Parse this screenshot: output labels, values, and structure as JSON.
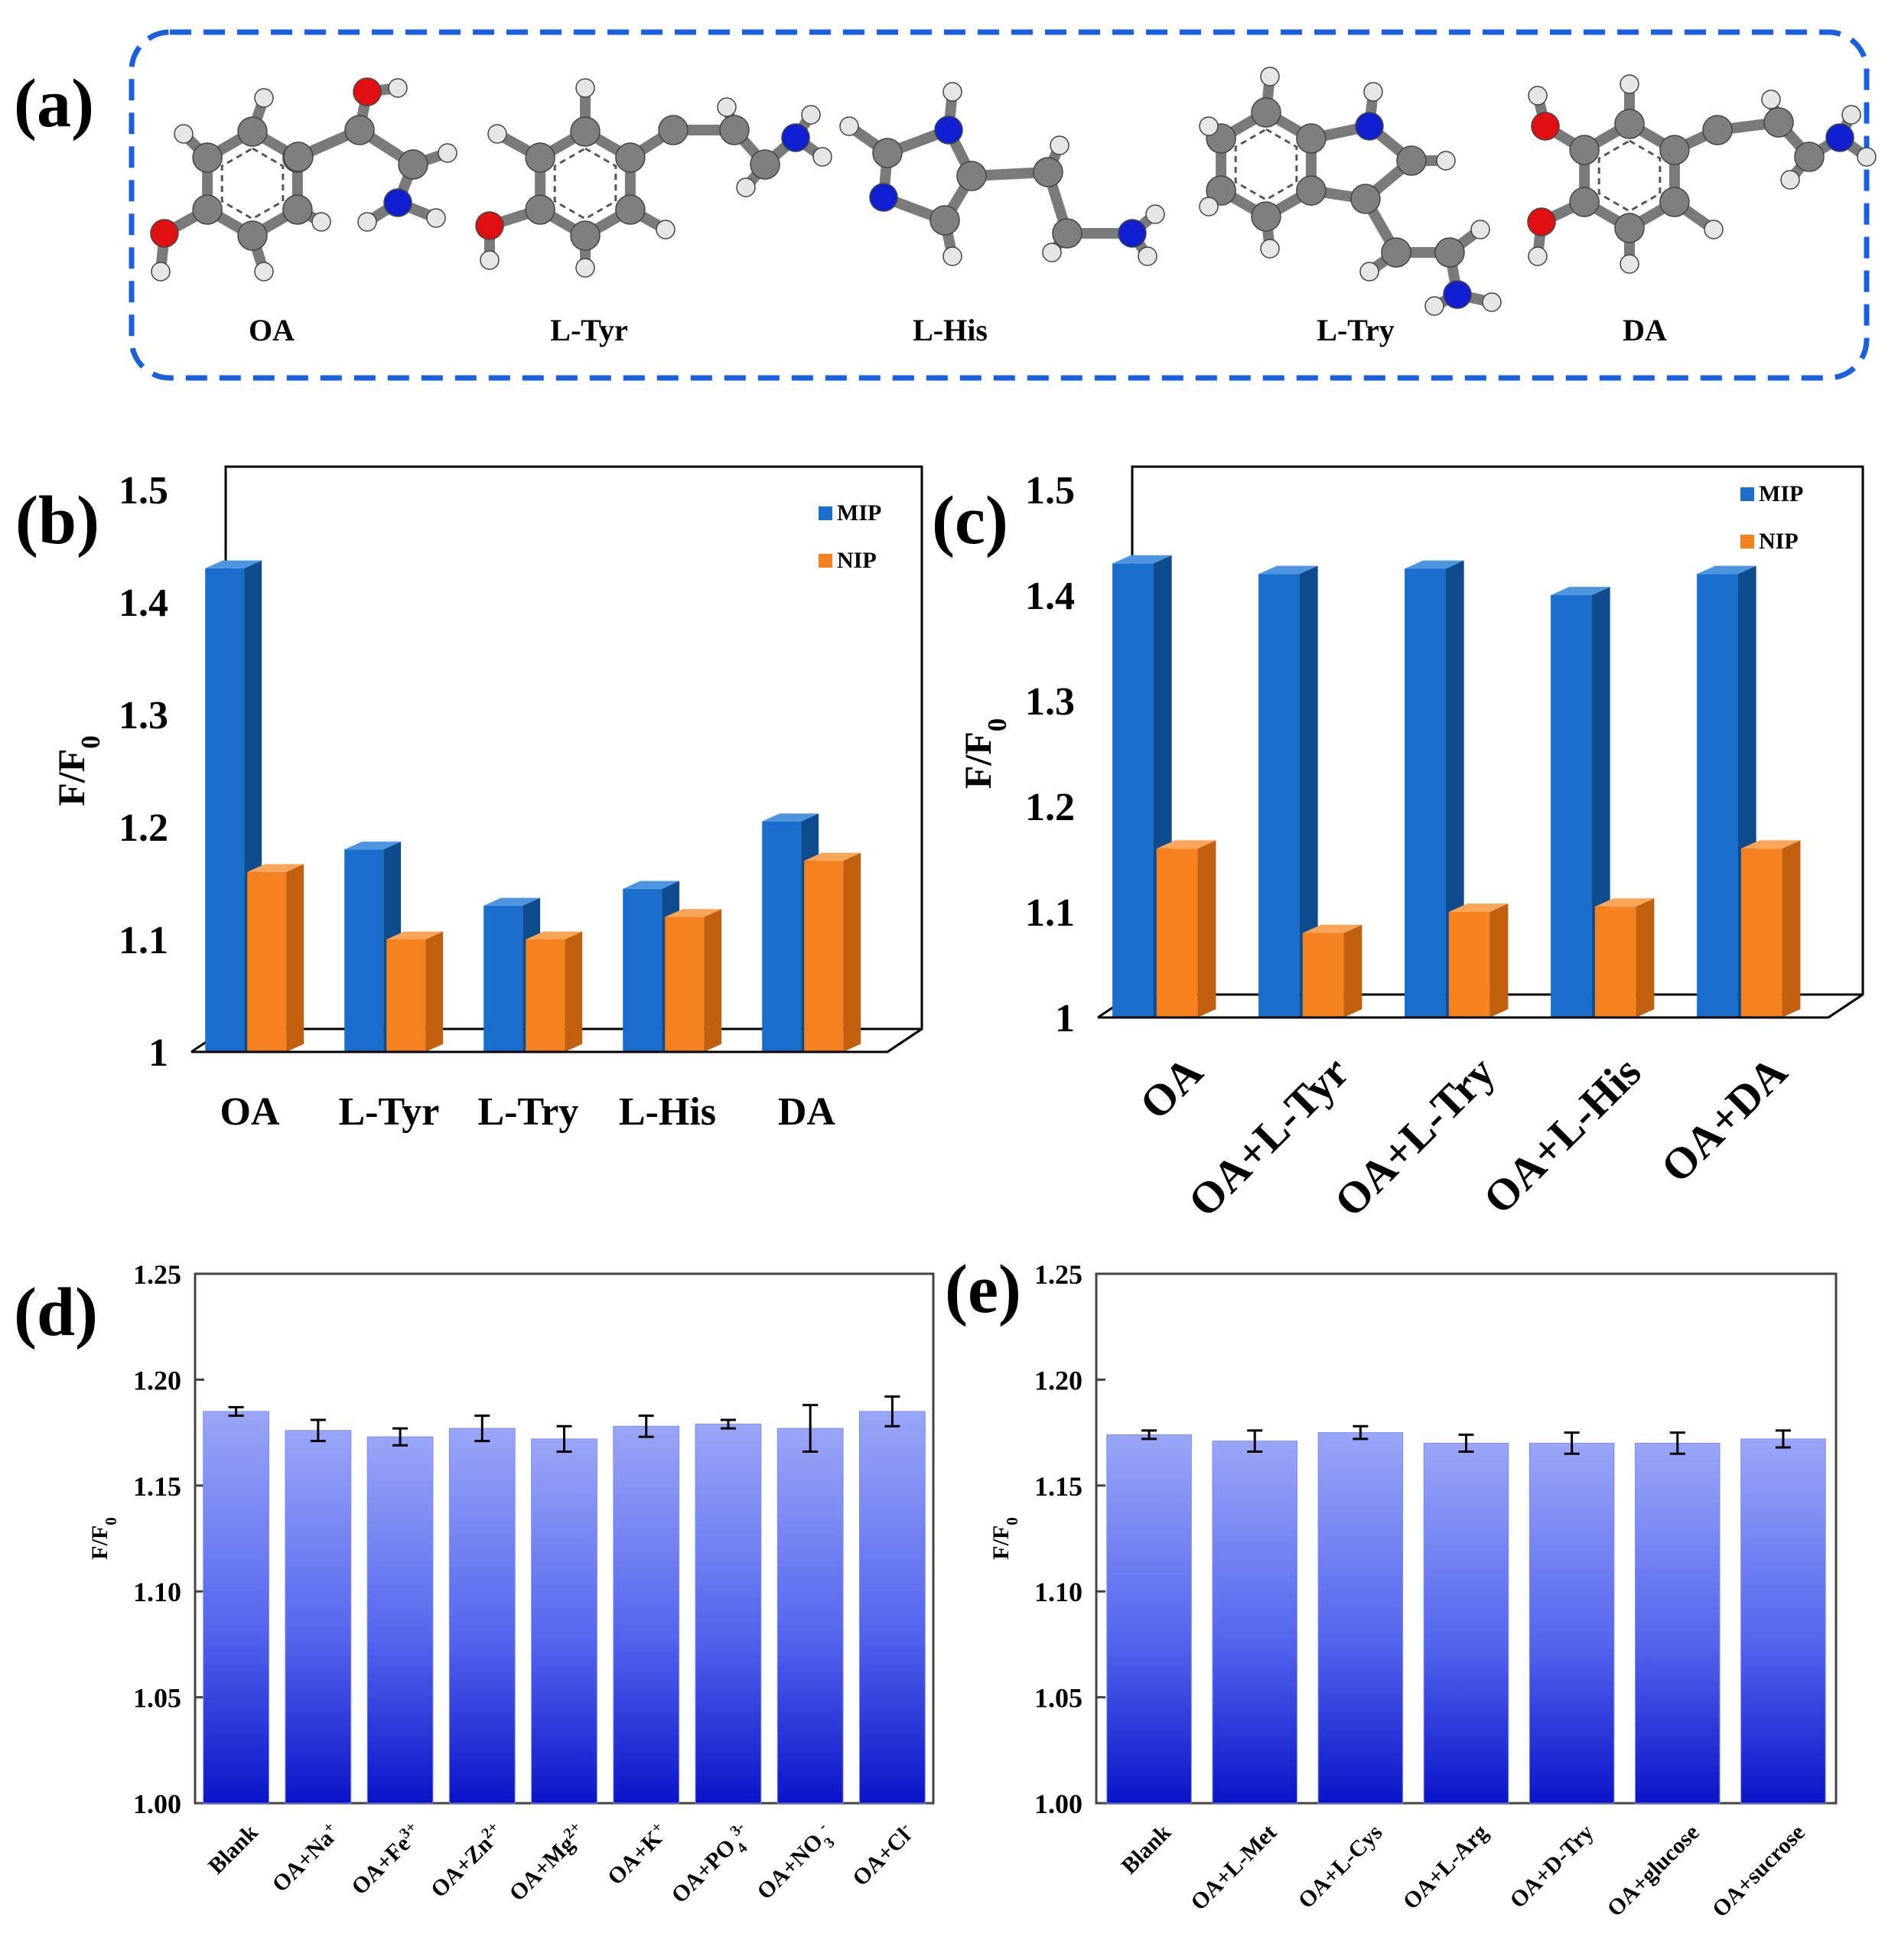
{
  "figure": {
    "panel_labels": [
      "(a)",
      "(b)",
      "(c)",
      "(d)",
      "(e)"
    ]
  },
  "colors": {
    "mip_front": "#1a6fcc",
    "mip_side": "#0f4c8e",
    "mip_top": "#4d95e0",
    "nip_front": "#f5811f",
    "nip_side": "#c1600f",
    "nip_top": "#f9a55a",
    "bar_top": "#9aa6f7",
    "bar_bottom": "#0a14c8",
    "oxygen": "#e01010",
    "nitrogen": "#1020d0",
    "carbon": "#7f7f7f",
    "hydrogen": "#e6e6e6",
    "dash_border": "#1a5fe0"
  },
  "molecules": [
    {
      "name": "OA"
    },
    {
      "name": "L-Tyr"
    },
    {
      "name": "L-His"
    },
    {
      "name": "L-Try"
    },
    {
      "name": "DA"
    }
  ],
  "chart_data": [
    {
      "panel": "(b)",
      "type": "bar",
      "title": "",
      "ylabel": "F/F0",
      "ylabel_main": "F/F",
      "ylabel_sub": "0",
      "xlabel": "",
      "ylim": [
        1,
        1.5
      ],
      "yticks": [
        "1",
        "1.1",
        "1.2",
        "1.3",
        "1.4",
        "1.5"
      ],
      "categories": [
        "OA",
        "L-Tyr",
        "L-Try",
        "L-His",
        "DA"
      ],
      "legend_position": "top-right",
      "series": [
        {
          "name": "MIP",
          "values": [
            1.43,
            1.18,
            1.13,
            1.145,
            1.205
          ]
        },
        {
          "name": "NIP",
          "values": [
            1.16,
            1.1,
            1.1,
            1.12,
            1.17
          ]
        }
      ]
    },
    {
      "panel": "(c)",
      "type": "bar",
      "title": "",
      "ylabel": "F/F0",
      "ylabel_main": "F/F",
      "ylabel_sub": "0",
      "xlabel": "",
      "ylim": [
        1,
        1.5
      ],
      "yticks": [
        "1",
        "1.1",
        "1.2",
        "1.3",
        "1.4",
        "1.5"
      ],
      "categories": [
        "OA",
        "OA+L-Tyr",
        "OA+L-Try",
        "OA+L-His",
        "OA+DA"
      ],
      "legend_position": "top-right",
      "series": [
        {
          "name": "MIP",
          "values": [
            1.43,
            1.42,
            1.425,
            1.4,
            1.42
          ]
        },
        {
          "name": "NIP",
          "values": [
            1.16,
            1.08,
            1.1,
            1.105,
            1.16
          ]
        }
      ]
    },
    {
      "panel": "(d)",
      "type": "bar",
      "title": "",
      "ylabel": "F/F0",
      "ylabel_main": "F/F",
      "ylabel_sub": "0",
      "xlabel": "",
      "ylim": [
        1.0,
        1.25
      ],
      "yticks": [
        "1.00",
        "1.05",
        "1.10",
        "1.15",
        "1.20",
        "1.25"
      ],
      "categories": [
        {
          "base": "Blank",
          "sup": ""
        },
        {
          "base": "OA+Na",
          "sup": "+"
        },
        {
          "base": "OA+Fe",
          "sup": "3+"
        },
        {
          "base": "OA+Zn",
          "sup": "2+"
        },
        {
          "base": "OA+Mg",
          "sup": "2+"
        },
        {
          "base": "OA+K",
          "sup": "+"
        },
        {
          "base": "OA+PO",
          "sub": "4",
          "sup": "3-"
        },
        {
          "base": "OA+NO",
          "sub": "3",
          "sup": "-"
        },
        {
          "base": "OA+Cl",
          "sup": "-"
        }
      ],
      "values": [
        1.185,
        1.176,
        1.173,
        1.177,
        1.172,
        1.178,
        1.179,
        1.177,
        1.185
      ],
      "errors": [
        0.002,
        0.005,
        0.004,
        0.006,
        0.006,
        0.005,
        0.002,
        0.011,
        0.007
      ]
    },
    {
      "panel": "(e)",
      "type": "bar",
      "title": "",
      "ylabel": "F/F0",
      "ylabel_main": "F/F",
      "ylabel_sub": "0",
      "xlabel": "",
      "ylim": [
        1.0,
        1.25
      ],
      "yticks": [
        "1.00",
        "1.05",
        "1.10",
        "1.15",
        "1.20",
        "1.25"
      ],
      "categories": [
        {
          "base": "Blank"
        },
        {
          "base": "OA+L-Met"
        },
        {
          "base": "OA+L-Cys"
        },
        {
          "base": "OA+L-Arg"
        },
        {
          "base": "OA+D-Try"
        },
        {
          "base": "OA+glucose"
        },
        {
          "base": "OA+sucrose"
        }
      ],
      "values": [
        1.174,
        1.171,
        1.175,
        1.17,
        1.17,
        1.17,
        1.172
      ],
      "errors": [
        0.002,
        0.005,
        0.003,
        0.004,
        0.005,
        0.005,
        0.004
      ]
    }
  ]
}
